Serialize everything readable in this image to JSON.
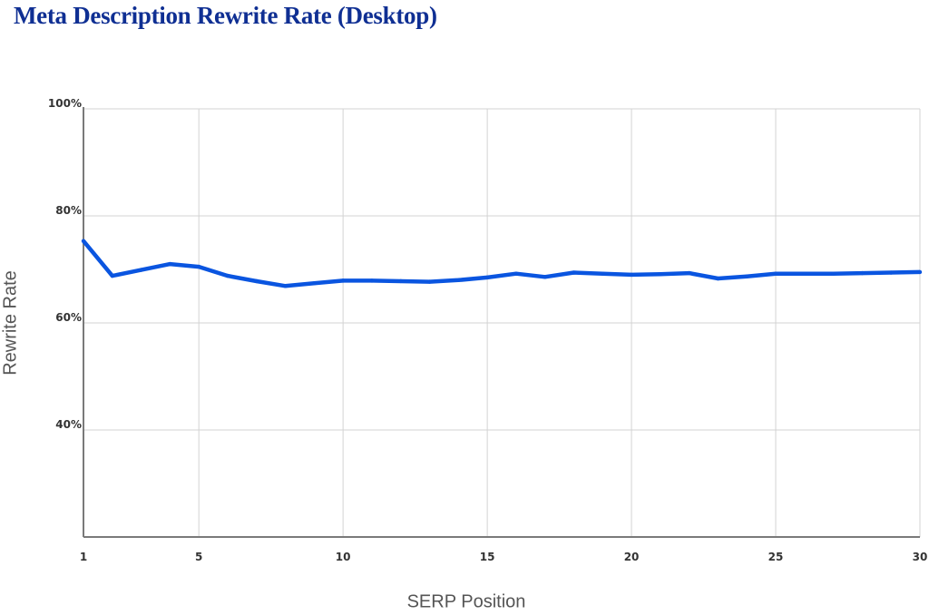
{
  "chart_data": {
    "type": "line",
    "title": "Meta Description Rewrite Rate (Desktop)",
    "xlabel": "SERP Position",
    "ylabel": "Rewrite Rate",
    "xlim": [
      1,
      30
    ],
    "ylim": [
      20,
      100
    ],
    "x_ticks": [
      {
        "value": 1,
        "label": "1"
      },
      {
        "value": 5,
        "label": "5"
      },
      {
        "value": 10,
        "label": "10"
      },
      {
        "value": 15,
        "label": "15"
      },
      {
        "value": 20,
        "label": "20"
      },
      {
        "value": 25,
        "label": "25"
      },
      {
        "value": 30,
        "label": "30"
      }
    ],
    "y_ticks": [
      {
        "value": 40,
        "label": "40%"
      },
      {
        "value": 60,
        "label": "60%"
      },
      {
        "value": 80,
        "label": "80%"
      },
      {
        "value": 100,
        "label": "100%"
      }
    ],
    "grid": true,
    "colors": {
      "line": "#0a55e0",
      "title": "#0f2f93",
      "grid": "#d3d3d3",
      "axis": "#7a7a7a"
    },
    "series": [
      {
        "x": [
          1,
          2,
          3,
          4,
          5,
          6,
          7,
          8,
          9,
          10,
          11,
          12,
          13,
          14,
          15,
          16,
          17,
          18,
          19,
          20,
          21,
          22,
          23,
          24,
          25,
          26,
          27,
          28,
          29,
          30
        ],
        "values": [
          75.3,
          68.8,
          69.9,
          71.0,
          70.5,
          68.8,
          67.8,
          66.9,
          67.4,
          67.9,
          67.9,
          67.8,
          67.7,
          68.0,
          68.5,
          69.2,
          68.6,
          69.4,
          69.2,
          69.0,
          69.1,
          69.3,
          68.3,
          68.7,
          69.2,
          69.2,
          69.2,
          69.3,
          69.4,
          69.5
        ]
      }
    ]
  }
}
